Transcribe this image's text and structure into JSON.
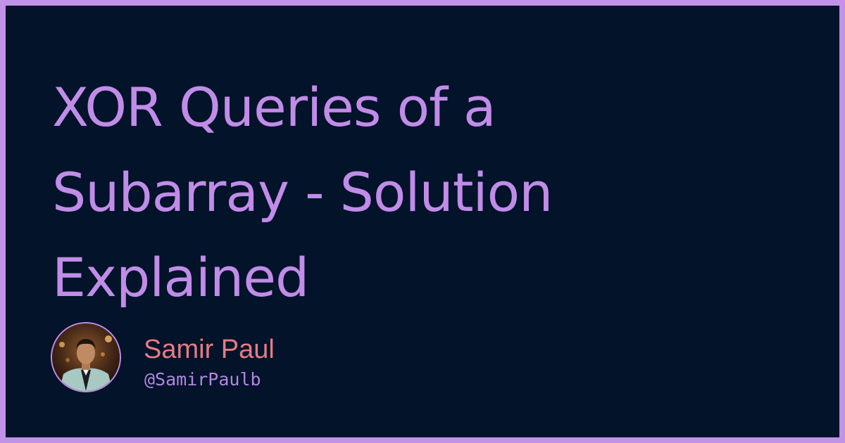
{
  "title": {
    "lines": [
      "XOR Queries of a",
      "Subarray - Solution",
      "Explained"
    ]
  },
  "author": {
    "name": "Samir Paul",
    "handle": "@SamirPaulb",
    "avatar_icon": "profile-photo"
  },
  "colors": {
    "frame": "#c292e8",
    "background": "#02132a",
    "title": "#c18ce8",
    "author_name": "#e57b82",
    "author_handle": "#b287e0"
  }
}
